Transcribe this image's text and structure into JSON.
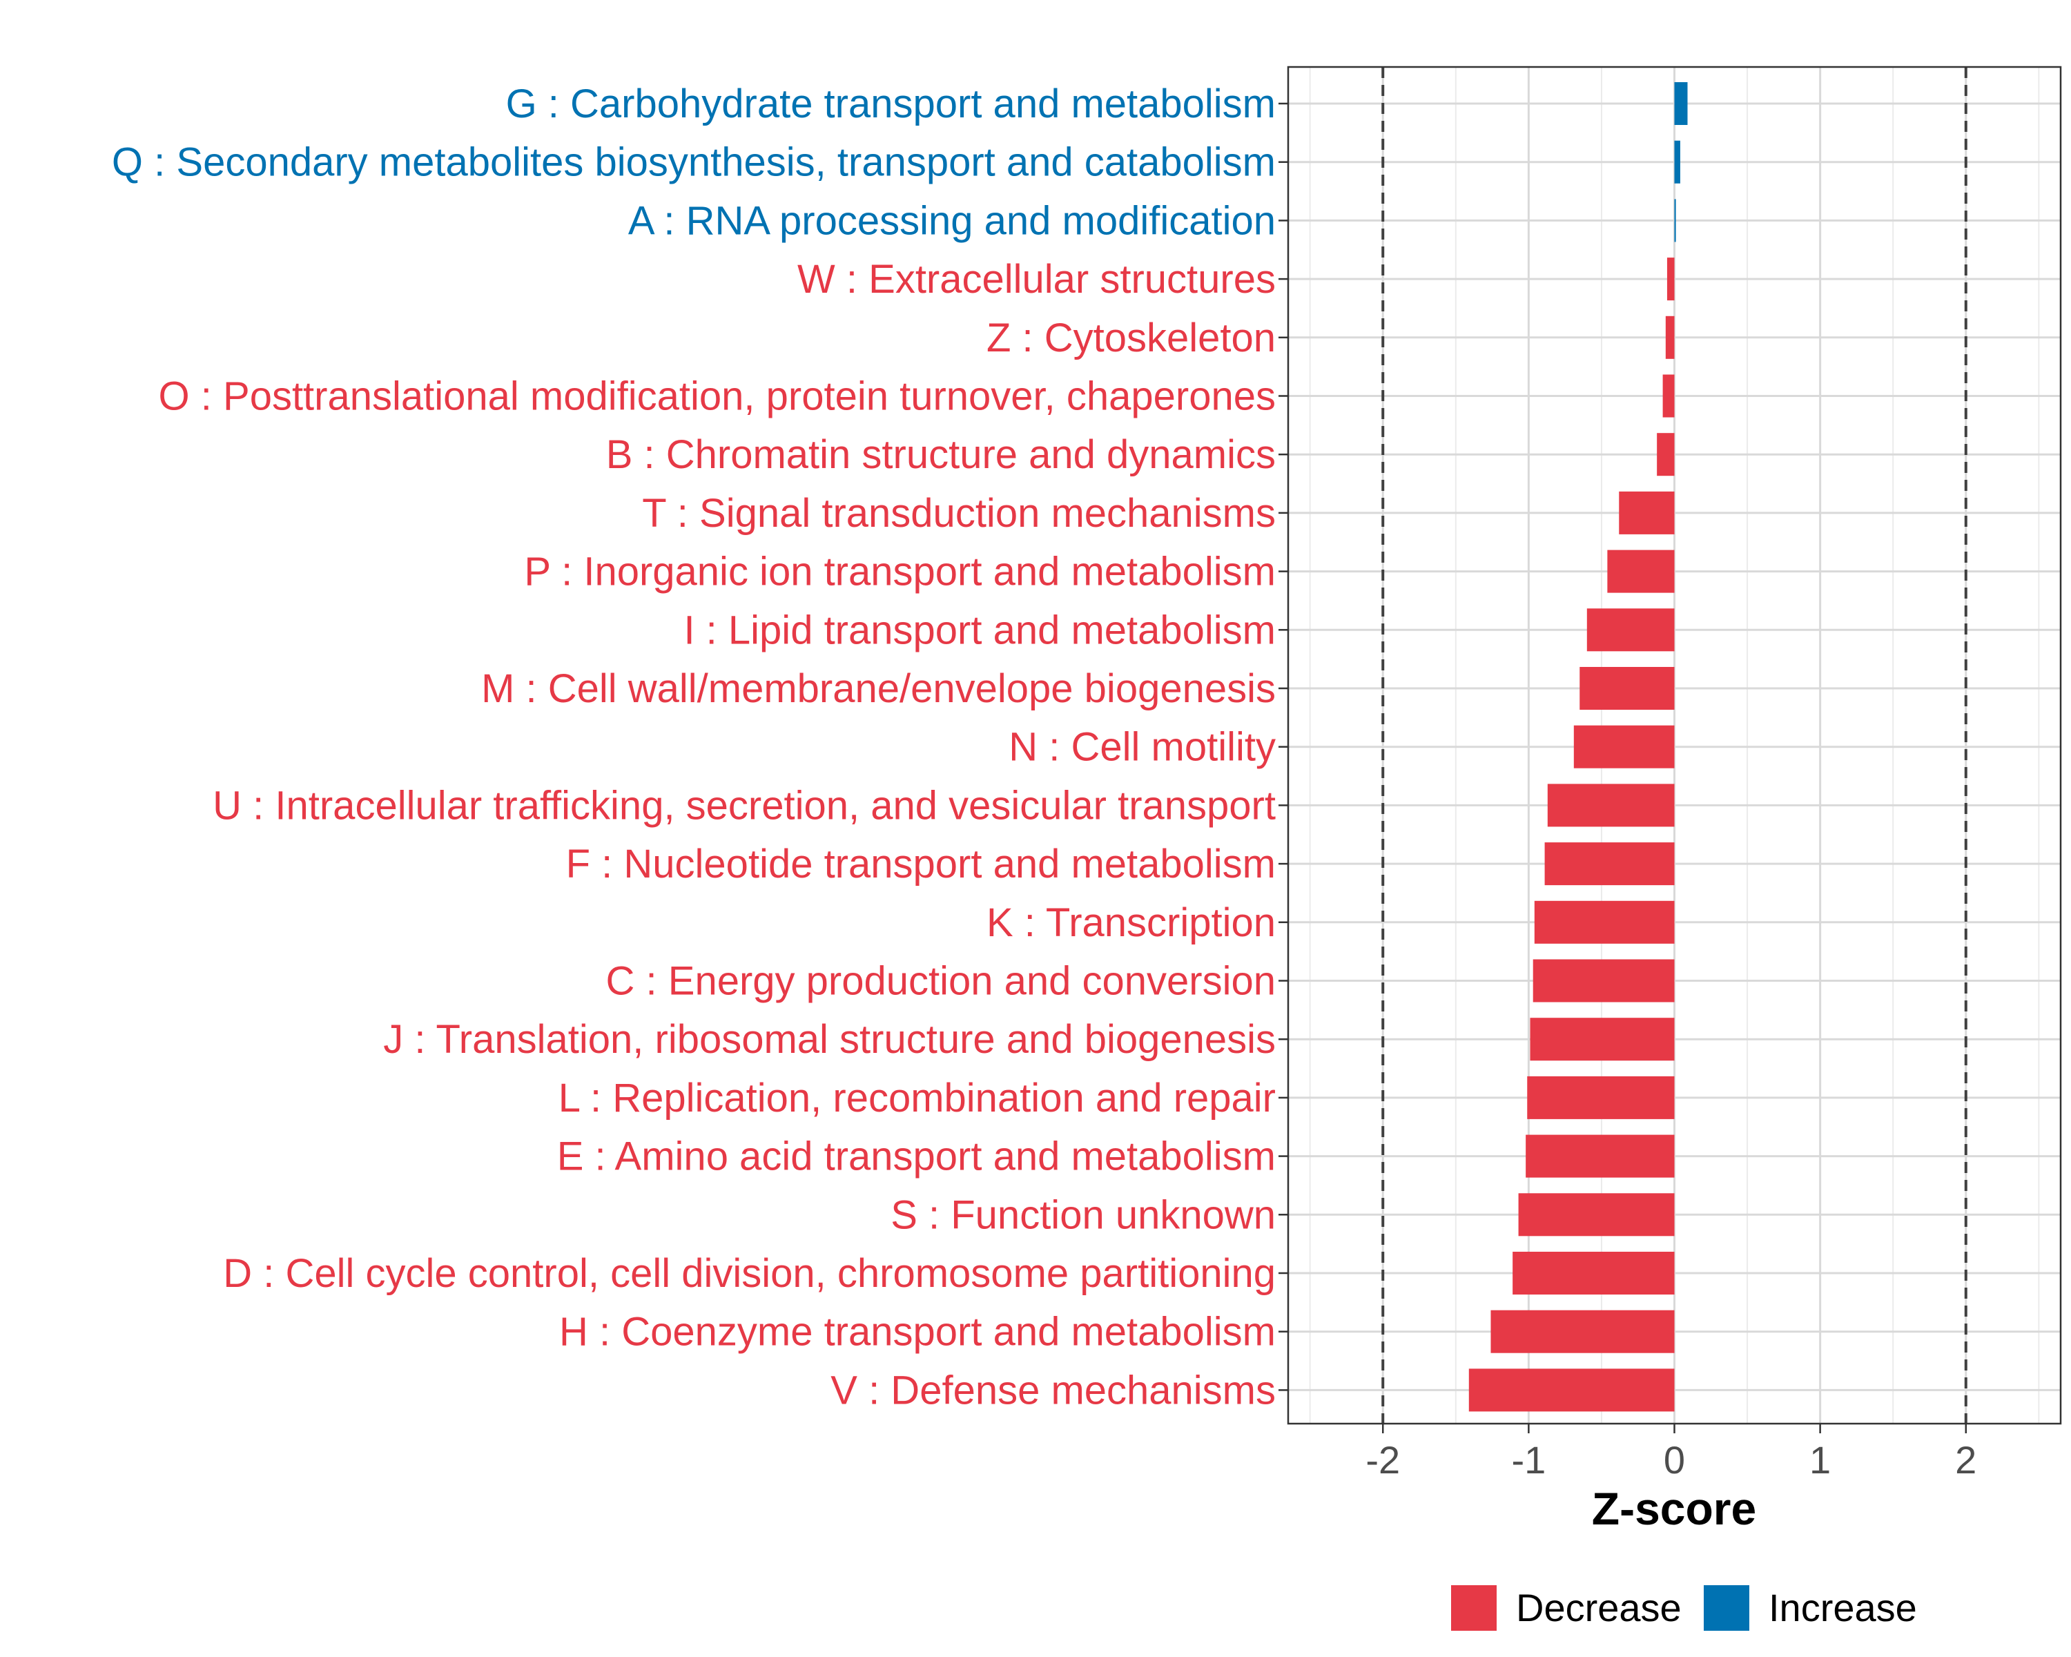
{
  "chart_data": {
    "type": "bar",
    "orientation": "horizontal",
    "title": "",
    "xlabel": "Z-score",
    "ylabel": "",
    "xlim": [
      -2.65,
      2.65
    ],
    "xticks": [
      -2,
      -1,
      0,
      1,
      2
    ],
    "xtick_labels": [
      "-2",
      "-1",
      "0",
      "1",
      "2"
    ],
    "reference_lines": [
      -2,
      2
    ],
    "grid": true,
    "categories": [
      "G : Carbohydrate transport and metabolism",
      "Q : Secondary metabolites biosynthesis, transport and catabolism",
      "A : RNA processing and modification",
      "W : Extracellular structures",
      "Z : Cytoskeleton",
      "O : Posttranslational modification, protein turnover, chaperones",
      "B : Chromatin structure and dynamics",
      "T : Signal transduction mechanisms",
      "P : Inorganic ion transport and metabolism",
      "I : Lipid transport and metabolism",
      "M : Cell wall/membrane/envelope biogenesis",
      "N : Cell motility",
      "U : Intracellular trafficking, secretion, and vesicular transport",
      "F : Nucleotide transport and metabolism",
      "K : Transcription",
      "C : Energy production and conversion",
      "J : Translation, ribosomal structure and biogenesis",
      "L : Replication, recombination and repair",
      "E : Amino acid transport and metabolism",
      "S : Function unknown",
      "D : Cell cycle control, cell division, chromosome partitioning",
      "H : Coenzyme transport and metabolism",
      "V : Defense mechanisms"
    ],
    "values": [
      0.09,
      0.04,
      0.01,
      -0.05,
      -0.06,
      -0.08,
      -0.12,
      -0.38,
      -0.46,
      -0.6,
      -0.65,
      -0.69,
      -0.87,
      -0.89,
      -0.96,
      -0.97,
      -0.99,
      -1.01,
      -1.02,
      -1.07,
      -1.11,
      -1.26,
      -1.41
    ],
    "groups": [
      "Increase",
      "Increase",
      "Increase",
      "Decrease",
      "Decrease",
      "Decrease",
      "Decrease",
      "Decrease",
      "Decrease",
      "Decrease",
      "Decrease",
      "Decrease",
      "Decrease",
      "Decrease",
      "Decrease",
      "Decrease",
      "Decrease",
      "Decrease",
      "Decrease",
      "Decrease",
      "Decrease",
      "Decrease",
      "Decrease"
    ],
    "legend": {
      "position": "bottom",
      "entries": [
        {
          "label": "Decrease",
          "color": "#e63946"
        },
        {
          "label": "Increase",
          "color": "#0072b2"
        }
      ]
    },
    "colors": {
      "Decrease": "#e63946",
      "Increase": "#0072b2"
    }
  }
}
